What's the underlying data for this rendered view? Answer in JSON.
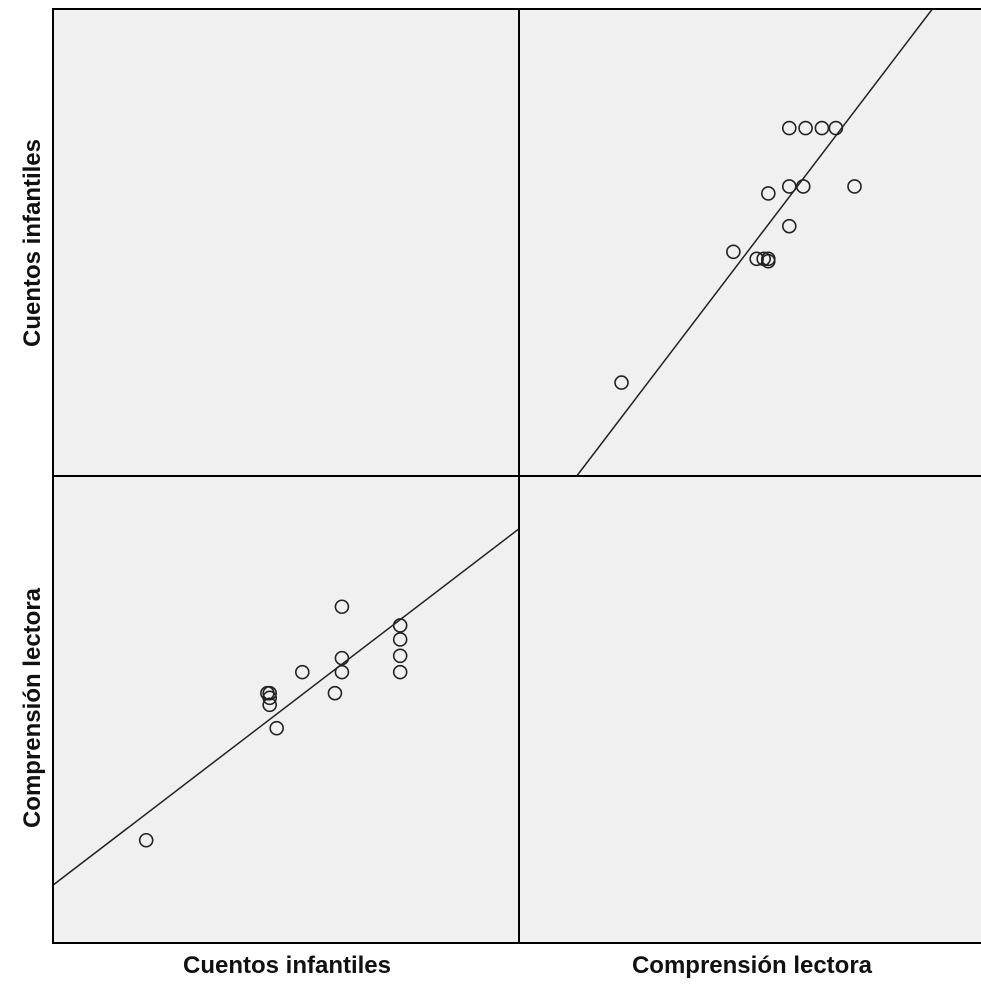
{
  "chart_data": {
    "type": "scatter",
    "subtype": "scatterplot-matrix",
    "variables": [
      "Cuentos infantiles",
      "Comprensión lectora"
    ],
    "x_labels": [
      "Cuentos infantiles",
      "Comprensión lectora"
    ],
    "y_labels": [
      "Cuentos infantiles",
      "Comprensión lectora"
    ],
    "grid": false,
    "legend": "none",
    "fit_line": "linear",
    "colors": {
      "panel_bg": "#f0f0f0",
      "marker": "#222222",
      "line": "#222222",
      "frame": "#000000"
    },
    "xlim": [
      0,
      1
    ],
    "ylim": [
      0,
      1
    ],
    "points": {
      "x": [
        0.2,
        0.46,
        0.465,
        0.465,
        0.465,
        0.48,
        0.535,
        0.605,
        0.62,
        0.62,
        0.62,
        0.745,
        0.745,
        0.745,
        0.745
      ],
      "y": [
        0.22,
        0.535,
        0.535,
        0.525,
        0.51,
        0.46,
        0.58,
        0.535,
        0.58,
        0.61,
        0.72,
        0.58,
        0.615,
        0.65,
        0.68
      ]
    },
    "fit": {
      "intercept": 0.124,
      "slope": 0.763
    }
  }
}
